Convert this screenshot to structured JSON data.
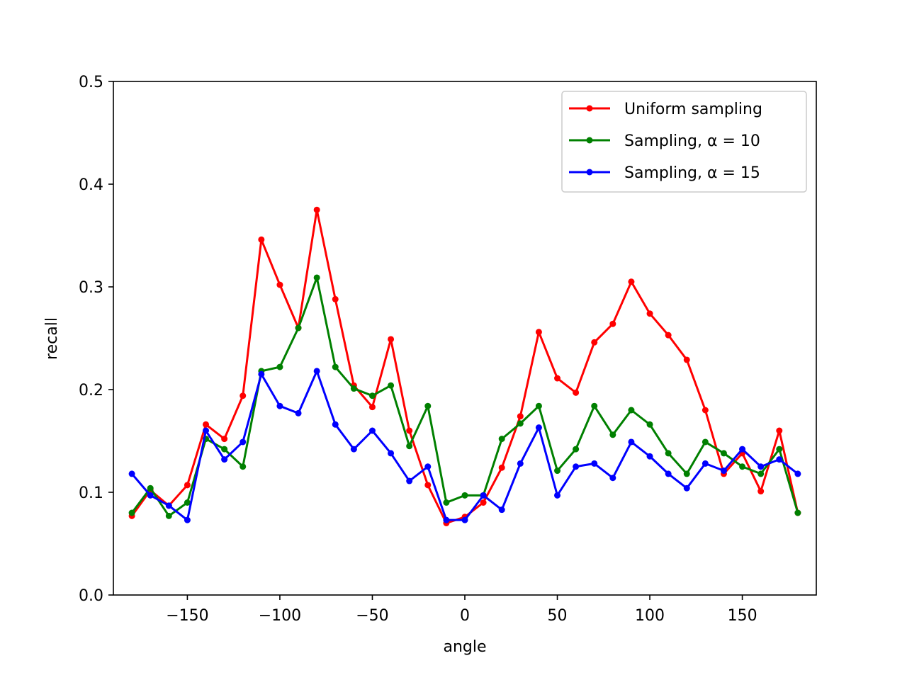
{
  "chart_data": {
    "type": "line",
    "title": "",
    "xlabel": "angle",
    "ylabel": "recall",
    "xlim": [
      -190,
      190
    ],
    "ylim": [
      0,
      0.5
    ],
    "xticks": [
      -150,
      -100,
      -50,
      0,
      50,
      100,
      150
    ],
    "xtick_labels": [
      "−150",
      "−100",
      "−50",
      "0",
      "50",
      "100",
      "150"
    ],
    "yticks": [
      0.0,
      0.1,
      0.2,
      0.3,
      0.4,
      0.5
    ],
    "ytick_labels": [
      "0.0",
      "0.1",
      "0.2",
      "0.3",
      "0.4",
      "0.5"
    ],
    "grid": false,
    "legend_position": "top-right",
    "x": [
      -180,
      -170,
      -160,
      -150,
      -140,
      -130,
      -120,
      -110,
      -100,
      -90,
      -80,
      -70,
      -60,
      -50,
      -40,
      -30,
      -20,
      -10,
      0,
      10,
      20,
      30,
      40,
      50,
      60,
      70,
      80,
      90,
      100,
      110,
      120,
      130,
      140,
      150,
      160,
      170,
      180
    ],
    "series": [
      {
        "name": "Uniform sampling",
        "color": "#ff0000",
        "values": [
          0.077,
          0.102,
          0.087,
          0.107,
          0.166,
          0.152,
          0.194,
          0.346,
          0.302,
          0.26,
          0.375,
          0.288,
          0.204,
          0.183,
          0.249,
          0.16,
          0.107,
          0.07,
          0.076,
          0.09,
          0.124,
          0.174,
          0.256,
          0.211,
          0.197,
          0.246,
          0.264,
          0.305,
          0.274,
          0.253,
          0.229,
          0.18,
          0.118,
          0.138,
          0.101,
          0.16,
          0.08
        ]
      },
      {
        "name": "Sampling, α = 10",
        "color": "#008000",
        "values": [
          0.08,
          0.104,
          0.077,
          0.09,
          0.152,
          0.142,
          0.125,
          0.218,
          0.222,
          0.26,
          0.309,
          0.222,
          0.201,
          0.194,
          0.204,
          0.145,
          0.184,
          0.09,
          0.097,
          0.097,
          0.152,
          0.167,
          0.184,
          0.121,
          0.142,
          0.184,
          0.156,
          0.18,
          0.166,
          0.138,
          0.118,
          0.149,
          0.138,
          0.125,
          0.118,
          0.142,
          0.08
        ]
      },
      {
        "name": "Sampling, α = 15",
        "color": "#0000ff",
        "values": [
          0.118,
          0.097,
          0.087,
          0.073,
          0.16,
          0.132,
          0.149,
          0.215,
          0.184,
          0.177,
          0.218,
          0.166,
          0.142,
          0.16,
          0.138,
          0.111,
          0.125,
          0.073,
          0.073,
          0.097,
          0.083,
          0.128,
          0.163,
          0.097,
          0.125,
          0.128,
          0.114,
          0.149,
          0.135,
          0.118,
          0.104,
          0.128,
          0.121,
          0.142,
          0.125,
          0.132,
          0.118
        ]
      }
    ]
  }
}
